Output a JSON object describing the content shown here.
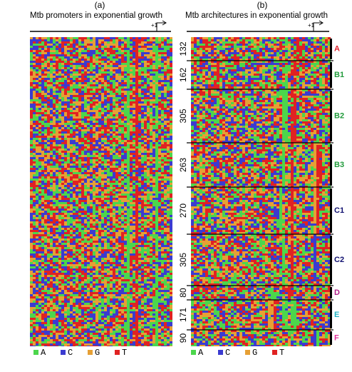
{
  "panels": [
    {
      "label": "(a)",
      "title": "Mtb promoters in exponential growth",
      "tss": "+1"
    },
    {
      "label": "(b)",
      "title": "Mtb architectures in exponential growth",
      "tss": "+1",
      "clusters": [
        {
          "label": "A",
          "count": "132"
        },
        {
          "label": "B1",
          "count": "162"
        },
        {
          "label": "B2",
          "count": "305"
        },
        {
          "label": "B3",
          "count": "263"
        },
        {
          "label": "C1",
          "count": "270"
        },
        {
          "label": "C2",
          "count": "305"
        },
        {
          "label": "D",
          "count": "80"
        },
        {
          "label": "E",
          "count": "171"
        },
        {
          "label": "F",
          "count": "90"
        }
      ]
    }
  ],
  "legend": [
    "A",
    "C",
    "G",
    "T"
  ]
}
